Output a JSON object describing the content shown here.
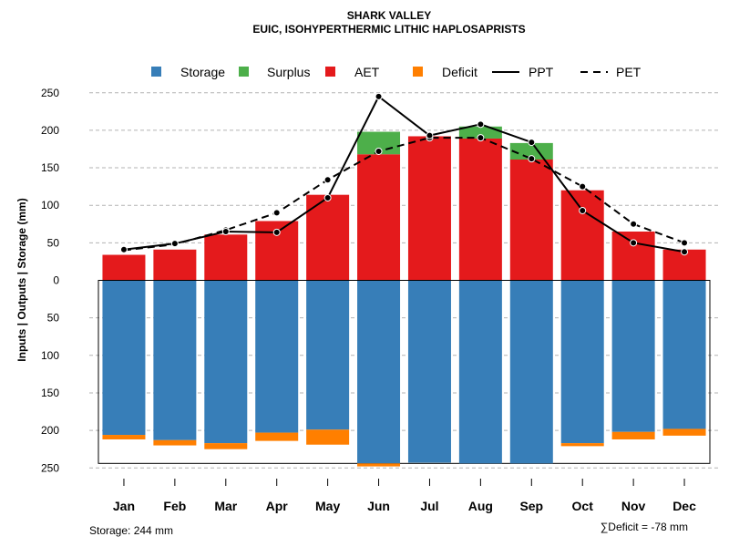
{
  "chart_data": {
    "type": "bar",
    "title": "SHARK VALLEY",
    "subtitle": "EUIC, ISOHYPERTHERMIC LITHIC HAPLOSAPRISTS",
    "ylabel": "Inputs | Outputs | Storage    (mm)",
    "categories": [
      "Jan",
      "Feb",
      "Mar",
      "Apr",
      "May",
      "Jun",
      "Jul",
      "Aug",
      "Sep",
      "Oct",
      "Nov",
      "Dec"
    ],
    "yticks": [
      250,
      200,
      150,
      100,
      50,
      0,
      50,
      100,
      150,
      200,
      250
    ],
    "ylim": [
      -250,
      250
    ],
    "legend": [
      "Storage",
      "Surplus",
      "AET",
      "Deficit",
      "PPT",
      "PET"
    ],
    "colors": {
      "storage": "#377eb8",
      "surplus": "#4daf4a",
      "aet": "#e41a1c",
      "deficit": "#ff7f00"
    },
    "series": [
      {
        "name": "AET",
        "values": [
          34,
          41,
          61,
          79,
          114,
          168,
          192,
          189,
          161,
          120,
          65,
          41
        ]
      },
      {
        "name": "Surplus",
        "values": [
          0,
          0,
          0,
          0,
          0,
          30,
          0,
          16,
          22,
          0,
          0,
          0
        ]
      },
      {
        "name": "Storage",
        "values": [
          206,
          213,
          217,
          203,
          199,
          244,
          243,
          244,
          244,
          217,
          202,
          198
        ]
      },
      {
        "name": "Deficit",
        "values": [
          6,
          7,
          8,
          11,
          20,
          4,
          0,
          0,
          0,
          4,
          10,
          9
        ]
      },
      {
        "name": "PPT",
        "values": [
          41,
          49,
          65,
          64,
          110,
          245,
          193,
          208,
          184,
          93,
          50,
          38
        ]
      },
      {
        "name": "PET",
        "values": [
          40,
          48,
          67,
          90,
          134,
          172,
          190,
          190,
          162,
          125,
          75,
          50
        ]
      }
    ]
  },
  "footnotes": {
    "storage": "Storage: 244 mm",
    "deficit": "∑Deficit = -78 mm"
  }
}
